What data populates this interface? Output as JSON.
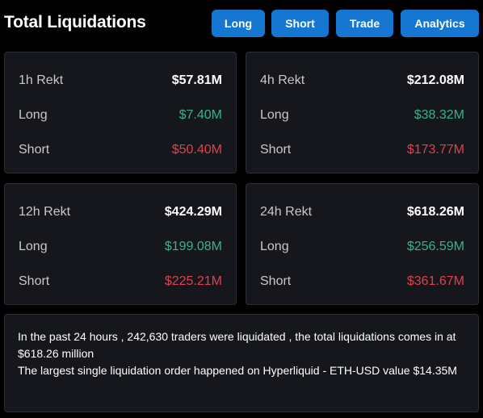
{
  "header": {
    "title": "Total Liquidations",
    "buttons": {
      "long": "Long",
      "short": "Short",
      "trade": "Trade",
      "analytics": "Analytics"
    }
  },
  "cards": {
    "h1": {
      "label": "1h Rekt",
      "total": "$57.81M",
      "long_label": "Long",
      "long": "$7.40M",
      "short_label": "Short",
      "short": "$50.40M"
    },
    "h4": {
      "label": "4h Rekt",
      "total": "$212.08M",
      "long_label": "Long",
      "long": "$38.32M",
      "short_label": "Short",
      "short": "$173.77M"
    },
    "h12": {
      "label": "12h Rekt",
      "total": "$424.29M",
      "long_label": "Long",
      "long": "$199.08M",
      "short_label": "Short",
      "short": "$225.21M"
    },
    "h24": {
      "label": "24h Rekt",
      "total": "$618.26M",
      "long_label": "Long",
      "long": "$256.59M",
      "short_label": "Short",
      "short": "$361.67M"
    }
  },
  "summary": {
    "line1": "In the past 24 hours , 242,630 traders were liquidated , the total liquidations comes in at $618.26 million",
    "line2": "The largest single liquidation order happened on Hyperliquid - ETH-USD value $14.35M"
  },
  "colors": {
    "accent": "#1677d2",
    "long": "#36b38a",
    "short": "#e0404f",
    "card_bg": "#15171c"
  }
}
